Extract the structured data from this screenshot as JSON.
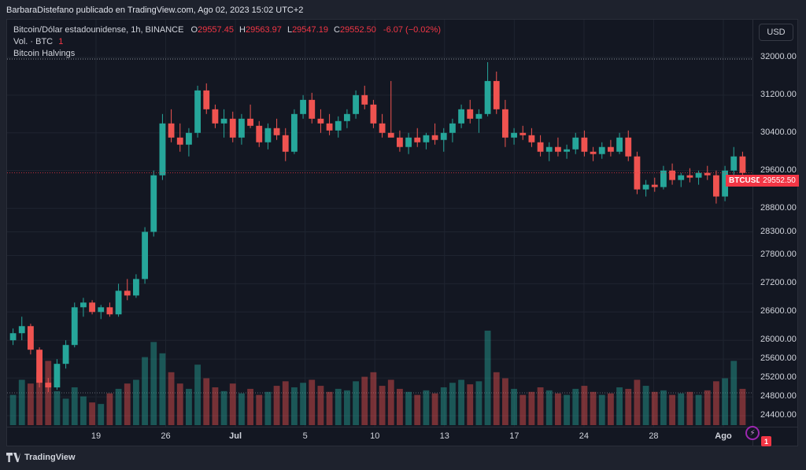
{
  "publish_line": "BarbaraDistefano publicado en TradingView.com, Ago 02, 2023 15:02 UTC+2",
  "legend": {
    "symbol": "Bitcoin/Dólar estadounidense, 1h, BINANCE",
    "o_label": "O",
    "o_value": "29557.45",
    "h_label": "H",
    "h_value": "29563.97",
    "l_label": "L",
    "l_value": "29547.19",
    "c_label": "C",
    "c_value": "29552.50",
    "change": "-6.07 (−0.02%)",
    "vol_label": "Vol. · BTC",
    "vol_value": "1",
    "indicator": "Bitcoin Halvings"
  },
  "currency_button": "USD",
  "price_ticks": [
    "32000.00",
    "31200.00",
    "30400.00",
    "29600.00",
    "28800.00",
    "28300.00",
    "27800.00",
    "27200.00",
    "26600.00",
    "26000.00",
    "25600.00",
    "25200.00",
    "24800.00",
    "24400.00"
  ],
  "time_ticks": [
    {
      "label": "19",
      "bold": false
    },
    {
      "label": "26",
      "bold": false
    },
    {
      "label": "Jul",
      "bold": true
    },
    {
      "label": "5",
      "bold": false
    },
    {
      "label": "10",
      "bold": false
    },
    {
      "label": "13",
      "bold": false
    },
    {
      "label": "17",
      "bold": false
    },
    {
      "label": "24",
      "bold": false
    },
    {
      "label": "28",
      "bold": false
    },
    {
      "label": "Ago",
      "bold": true
    }
  ],
  "last_price": {
    "symbol": "BTCUSD",
    "value": "29552.50"
  },
  "event_badge": "1",
  "footer_brand": "TradingView",
  "colors": {
    "up": "#26a69a",
    "down": "#ef5350",
    "bg": "#131722",
    "accent": "#f23645"
  },
  "chart_data": {
    "type": "candlestick",
    "title": "",
    "xlabel": "",
    "ylabel": "",
    "ylim": [
      24200,
      32300
    ],
    "series": [
      {
        "values": [
          [
            26000,
            26250,
            25900,
            26150
          ],
          [
            26150,
            26500,
            26000,
            26300
          ],
          [
            26300,
            26350,
            25700,
            25800
          ],
          [
            25800,
            25850,
            25000,
            25100
          ],
          [
            25100,
            25200,
            24900,
            25000
          ],
          [
            25000,
            25600,
            24950,
            25500
          ],
          [
            25500,
            26000,
            25400,
            25900
          ],
          [
            25900,
            26800,
            25850,
            26700
          ],
          [
            26700,
            26900,
            26500,
            26800
          ],
          [
            26800,
            26850,
            26550,
            26600
          ],
          [
            26600,
            26750,
            26450,
            26700
          ],
          [
            26700,
            26800,
            26500,
            26550
          ],
          [
            26550,
            27200,
            26500,
            27050
          ],
          [
            27050,
            27300,
            26850,
            26950
          ],
          [
            26950,
            27400,
            26900,
            27300
          ],
          [
            27300,
            28400,
            27200,
            28300
          ],
          [
            28300,
            29600,
            28200,
            29500
          ],
          [
            29500,
            30800,
            29400,
            30600
          ],
          [
            30600,
            30900,
            30200,
            30300
          ],
          [
            30300,
            30600,
            30000,
            30150
          ],
          [
            30150,
            30500,
            29900,
            30400
          ],
          [
            30400,
            31400,
            30300,
            31300
          ],
          [
            31300,
            31450,
            30800,
            30900
          ],
          [
            30900,
            31000,
            30500,
            30600
          ],
          [
            30600,
            30900,
            30300,
            30700
          ],
          [
            30700,
            30850,
            30200,
            30300
          ],
          [
            30300,
            30800,
            30150,
            30700
          ],
          [
            30700,
            31000,
            30500,
            30550
          ],
          [
            30550,
            30650,
            30100,
            30200
          ],
          [
            30200,
            30600,
            30050,
            30500
          ],
          [
            30500,
            30700,
            30250,
            30350
          ],
          [
            30350,
            30500,
            29800,
            30000
          ],
          [
            30000,
            30900,
            29950,
            30800
          ],
          [
            30800,
            31200,
            30700,
            31100
          ],
          [
            31100,
            31250,
            30600,
            30700
          ],
          [
            30700,
            30900,
            30400,
            30600
          ],
          [
            30600,
            30800,
            30350,
            30450
          ],
          [
            30450,
            30750,
            30300,
            30650
          ],
          [
            30650,
            30900,
            30500,
            30800
          ],
          [
            30800,
            31300,
            30700,
            31200
          ],
          [
            31200,
            31400,
            30900,
            31000
          ],
          [
            31000,
            31100,
            30500,
            30600
          ],
          [
            30600,
            30800,
            30300,
            30400
          ],
          [
            30400,
            31500,
            30350,
            30300
          ],
          [
            30300,
            30450,
            30000,
            30100
          ],
          [
            30100,
            30400,
            29950,
            30300
          ],
          [
            30300,
            30500,
            30100,
            30200
          ],
          [
            30200,
            30400,
            30050,
            30350
          ],
          [
            30350,
            30600,
            30150,
            30250
          ],
          [
            30250,
            30500,
            30000,
            30400
          ],
          [
            30400,
            30700,
            30200,
            30600
          ],
          [
            30600,
            31000,
            30500,
            30900
          ],
          [
            30900,
            31100,
            30600,
            30700
          ],
          [
            30700,
            30900,
            30400,
            30800
          ],
          [
            30800,
            31900,
            30750,
            31500
          ],
          [
            31500,
            31700,
            30800,
            30900
          ],
          [
            30900,
            31100,
            30100,
            30300
          ],
          [
            30300,
            30500,
            30150,
            30400
          ],
          [
            30400,
            30550,
            30250,
            30350
          ],
          [
            30350,
            30500,
            30100,
            30200
          ],
          [
            30200,
            30350,
            29900,
            30000
          ],
          [
            30000,
            30200,
            29800,
            30100
          ],
          [
            30100,
            30300,
            29900,
            30000
          ],
          [
            30000,
            30150,
            29850,
            30050
          ],
          [
            30050,
            30400,
            29950,
            30300
          ],
          [
            30300,
            30450,
            29900,
            30000
          ],
          [
            30000,
            30100,
            29800,
            29950
          ],
          [
            29950,
            30200,
            29850,
            30100
          ],
          [
            30100,
            30250,
            29900,
            30000
          ],
          [
            30000,
            30400,
            29950,
            30300
          ],
          [
            30300,
            30450,
            29800,
            29900
          ],
          [
            29900,
            30000,
            29100,
            29200
          ],
          [
            29200,
            29400,
            29050,
            29300
          ],
          [
            29300,
            29450,
            29150,
            29250
          ],
          [
            29250,
            29700,
            29200,
            29600
          ],
          [
            29600,
            29750,
            29300,
            29400
          ],
          [
            29400,
            29550,
            29250,
            29500
          ],
          [
            29500,
            29650,
            29350,
            29450
          ],
          [
            29450,
            29600,
            29300,
            29550
          ],
          [
            29550,
            29700,
            29400,
            29500
          ],
          [
            29500,
            29600,
            28900,
            29050
          ],
          [
            29050,
            29700,
            28950,
            29600
          ],
          [
            29600,
            30100,
            29500,
            29900
          ],
          [
            29900,
            30000,
            29500,
            29550
          ]
        ]
      }
    ],
    "volume": [
      40,
      60,
      55,
      70,
      85,
      45,
      35,
      50,
      38,
      30,
      28,
      42,
      48,
      55,
      60,
      90,
      110,
      95,
      70,
      55,
      48,
      80,
      62,
      50,
      45,
      55,
      42,
      48,
      40,
      44,
      52,
      58,
      50,
      56,
      60,
      52,
      44,
      48,
      46,
      58,
      64,
      70,
      52,
      60,
      48,
      44,
      40,
      46,
      42,
      50,
      56,
      60,
      54,
      58,
      125,
      70,
      62,
      48,
      40,
      44,
      50,
      46,
      42,
      40,
      48,
      52,
      44,
      40,
      42,
      50,
      48,
      60,
      52,
      44,
      46,
      40,
      42,
      44,
      40,
      46,
      58,
      62,
      85,
      48
    ]
  }
}
